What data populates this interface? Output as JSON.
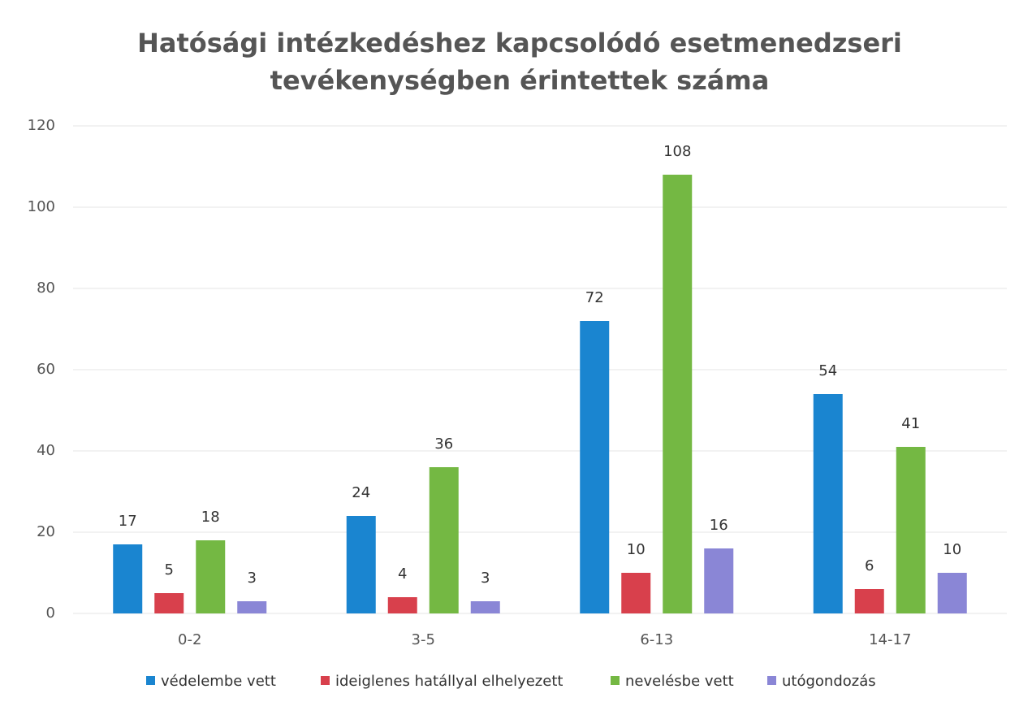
{
  "chart_data": {
    "type": "bar",
    "title": "Hatósági intézkedéshez kapcsolódó esetmenedzseri tevékenységben érintettek száma",
    "categories": [
      "0-2",
      "3-5",
      "6-13",
      "14-17"
    ],
    "series": [
      {
        "name": "védelembe vett",
        "color": "#1a85d0",
        "values": [
          17,
          24,
          72,
          54
        ]
      },
      {
        "name": "ideiglenes hatállyal elhelyezett",
        "color": "#d8404c",
        "values": [
          5,
          4,
          10,
          6
        ]
      },
      {
        "name": "nevelésbe vett",
        "color": "#74b843",
        "values": [
          18,
          36,
          108,
          41
        ]
      },
      {
        "name": "utógondozás",
        "color": "#8a86d6",
        "values": [
          3,
          3,
          16,
          10
        ]
      }
    ],
    "ylim": [
      0,
      120
    ],
    "yticks": [
      0,
      20,
      40,
      60,
      80,
      100,
      120
    ],
    "grid": true,
    "legend": "bottom"
  }
}
